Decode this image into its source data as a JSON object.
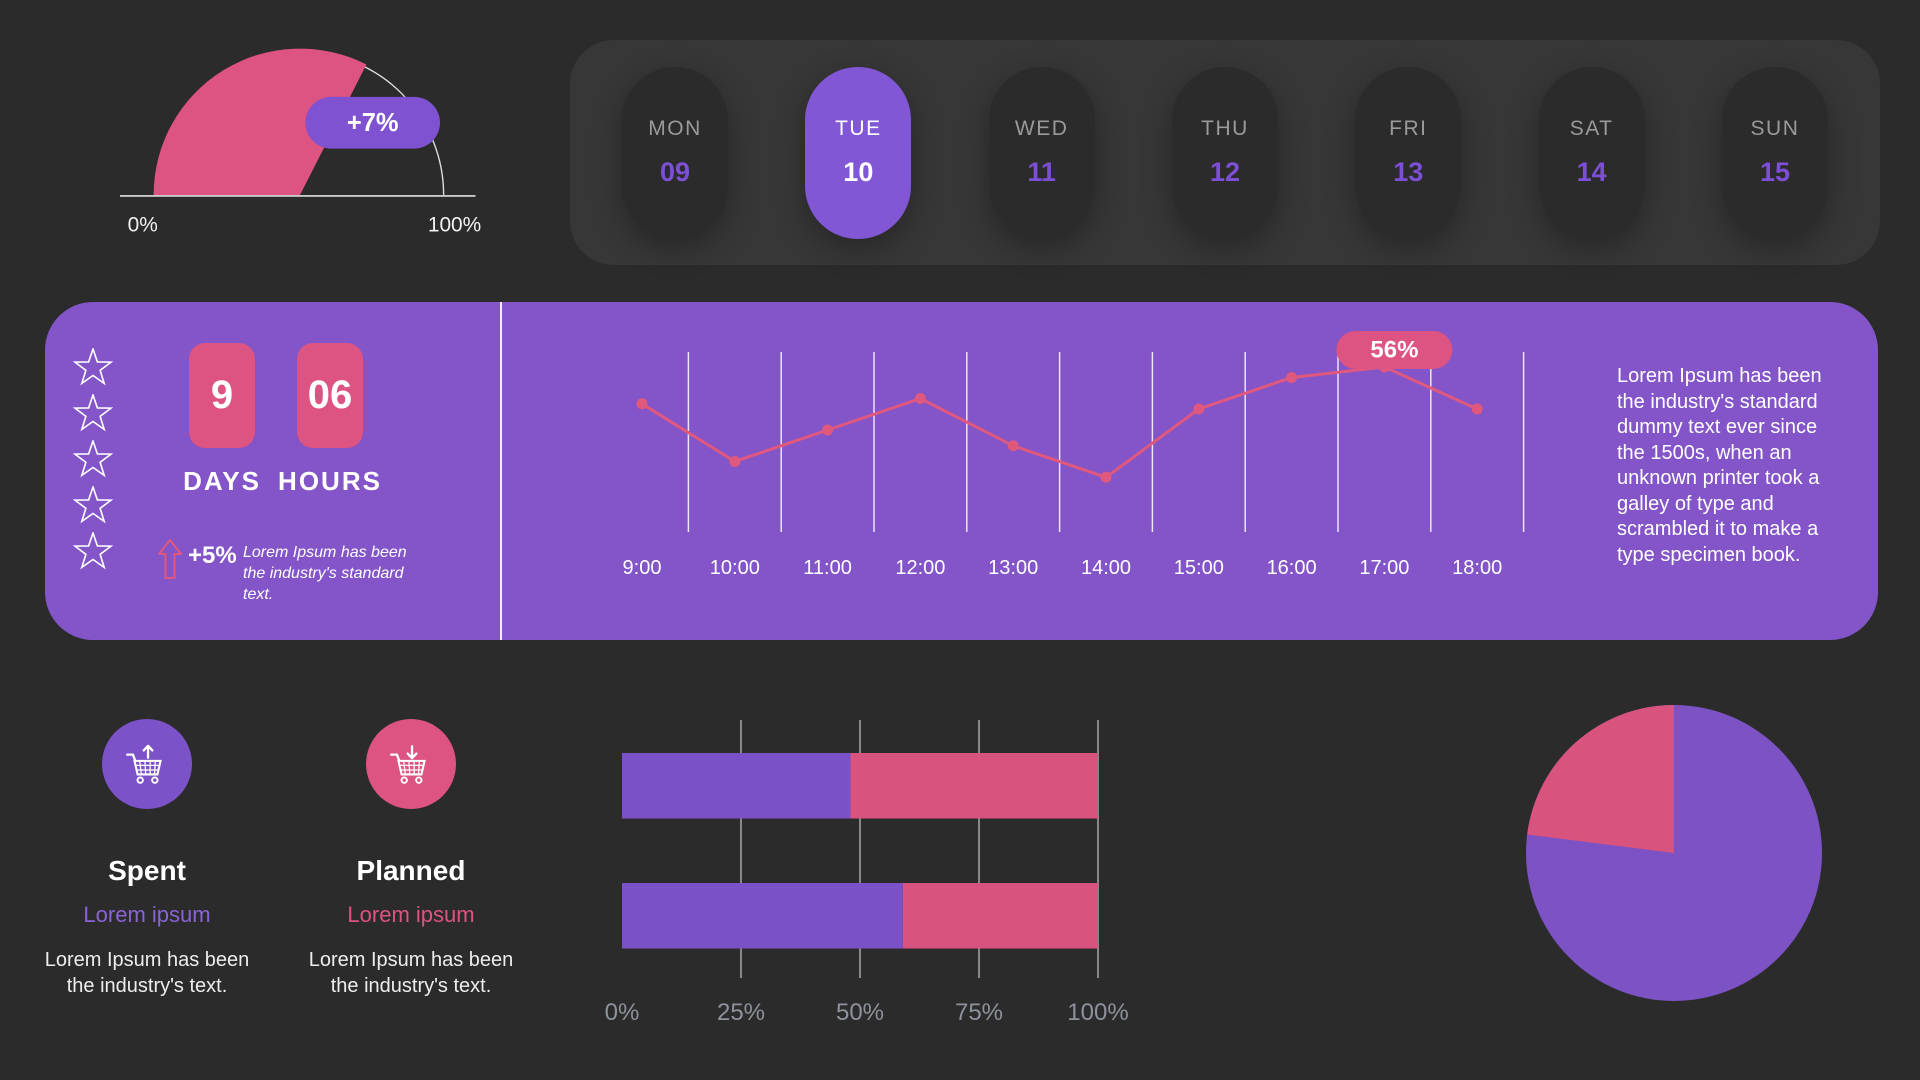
{
  "theme": {
    "background": "#2B2B2B",
    "accent_purple": "#7E52D1",
    "panel_purple": "#8355C9",
    "pink": "#DD5381",
    "line_pink": "#E0587D",
    "bar_purple": "#7B51C7",
    "bar_pink": "#D9537F",
    "day_name_gray": "#9A9A9A",
    "axis_gray": "#8D929B"
  },
  "week": {
    "days": [
      {
        "name": "MON",
        "num": "09",
        "selected": false
      },
      {
        "name": "TUE",
        "num": "10",
        "selected": true
      },
      {
        "name": "WED",
        "num": "11",
        "selected": false
      },
      {
        "name": "THU",
        "num": "12",
        "selected": false
      },
      {
        "name": "FRI",
        "num": "13",
        "selected": false
      },
      {
        "name": "SAT",
        "num": "14",
        "selected": false
      },
      {
        "name": "SUN",
        "num": "15",
        "selected": false
      }
    ]
  },
  "panel": {
    "rating_stars": 5,
    "countdown": {
      "days_value": "9",
      "days_label": "DAYS",
      "hours_value": "06",
      "hours_label": "HOURS"
    },
    "delta_value": "+5%",
    "delta_note": "Lorem Ipsum has been the industry's standard text.",
    "description": "Lorem Ipsum has been the industry's standard dummy text ever since the 1500s, when an unknown printer took a galley of type and scrambled it to make a type specimen book."
  },
  "metrics": {
    "spent": {
      "title": "Spent",
      "subtitle": "Lorem ipsum",
      "body": "Lorem Ipsum has been the industry's text.",
      "icon": "cart-arrow-up-icon",
      "color": "#7C52C8"
    },
    "planned": {
      "title": "Planned",
      "subtitle": "Lorem ipsum",
      "body": "Lorem Ipsum has been the industry's text.",
      "icon": "cart-arrow-down-icon",
      "color": "#DD5381"
    }
  },
  "chart_data": [
    {
      "id": "gauge",
      "type": "gauge",
      "min_label": "0%",
      "max_label": "100%",
      "value_pct": 65,
      "badge_label": "+7%",
      "fill_color": "#DD5381",
      "badge_color": "#7E52D1",
      "track_color": "#E0E0E0"
    },
    {
      "id": "hourly-line",
      "type": "line",
      "x": [
        "9:00",
        "10:00",
        "11:00",
        "12:00",
        "13:00",
        "14:00",
        "15:00",
        "16:00",
        "17:00",
        "18:00"
      ],
      "values": [
        49,
        38,
        44,
        50,
        41,
        35,
        48,
        54,
        56,
        48
      ],
      "ylim": [
        0,
        100
      ],
      "unit": "%",
      "annotation": {
        "x_index": 8,
        "label": "56%"
      },
      "line_color": "#E0587D",
      "badge_color": "#DD5381",
      "grid": "vertical lines between ticks",
      "legend": "none"
    },
    {
      "id": "progress-bars",
      "type": "bar",
      "orientation": "horizontal-stacked",
      "categories": [
        "top-bar",
        "bottom-bar"
      ],
      "series": [
        {
          "name": "purple",
          "color": "#7B51C7",
          "values": [
            48,
            59
          ]
        },
        {
          "name": "pink",
          "color": "#D9537F",
          "values": [
            52,
            41
          ]
        }
      ],
      "x_ticks": [
        "0%",
        "25%",
        "50%",
        "75%",
        "100%"
      ],
      "xlim": [
        0,
        100
      ],
      "grid": "vertical"
    },
    {
      "id": "share-pie",
      "type": "pie",
      "slices": [
        {
          "name": "purple",
          "value": 77,
          "color": "#7C52C4"
        },
        {
          "name": "pink",
          "value": 23,
          "color": "#D9537F"
        }
      ],
      "layout": "pink slice counterclockwise from 12 o'clock"
    }
  ]
}
